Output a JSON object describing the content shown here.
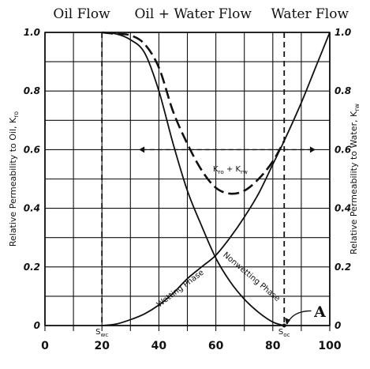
{
  "regions": [
    {
      "label": "Oil Flow",
      "x": 14
    },
    {
      "label": "Oil + Water Flow",
      "x": 52
    },
    {
      "label": "Water Flow",
      "x": 93
    }
  ],
  "chart_data": {
    "type": "line",
    "xlim": [
      0,
      100
    ],
    "ylim": [
      0,
      1.0
    ],
    "x_ticks": [
      "0",
      "20",
      "40",
      "60",
      "80",
      "100"
    ],
    "y_ticks": [
      "0",
      "0.2",
      "0.4",
      "0.6",
      "0.8",
      "1.0"
    ],
    "ylabel_left": "Relative Permeability to Oil, K",
    "ylabel_left_sub": "ro",
    "ylabel_right": "Relative Permeability to Water, K",
    "ylabel_right_sub": "rw",
    "grid": true,
    "series": [
      {
        "name": "Nonwetting Phase",
        "style": "solid",
        "x": [
          20,
          25,
          30,
          35,
          40,
          45,
          50,
          55,
          60,
          65,
          70,
          75,
          80,
          84
        ],
        "y": [
          1.0,
          0.995,
          0.975,
          0.93,
          0.8,
          0.62,
          0.46,
          0.34,
          0.23,
          0.15,
          0.09,
          0.045,
          0.012,
          0.0
        ]
      },
      {
        "name": "Wetting Phase",
        "style": "solid",
        "x": [
          20,
          25,
          30,
          35,
          40,
          45,
          50,
          55,
          60,
          65,
          70,
          75,
          80,
          84,
          90,
          95,
          100
        ],
        "y": [
          0.0,
          0.005,
          0.02,
          0.04,
          0.07,
          0.11,
          0.16,
          0.2,
          0.24,
          0.3,
          0.37,
          0.45,
          0.55,
          0.63,
          0.76,
          0.88,
          1.0
        ]
      },
      {
        "name": "K_ro + K_rw",
        "style": "dashed",
        "x": [
          20,
          25,
          30,
          35,
          40,
          45,
          50,
          55,
          60,
          65,
          70,
          75,
          80,
          84
        ],
        "y": [
          1.0,
          0.995,
          0.99,
          0.96,
          0.88,
          0.73,
          0.62,
          0.53,
          0.47,
          0.45,
          0.46,
          0.5,
          0.56,
          0.63
        ]
      }
    ],
    "annotations": {
      "curve_label_krokrw": {
        "base1": "K",
        "sub1": "ro",
        "plus": " + K",
        "sub2": "rw"
      },
      "wetting_label": "Wetting Phase",
      "nonwetting_label": "Nonwetting Phase",
      "swc": {
        "base": "S",
        "sub": "wc",
        "x": 20
      },
      "soc": {
        "base": "S",
        "sub": "oc",
        "x": 84
      },
      "point_a": "A"
    }
  }
}
